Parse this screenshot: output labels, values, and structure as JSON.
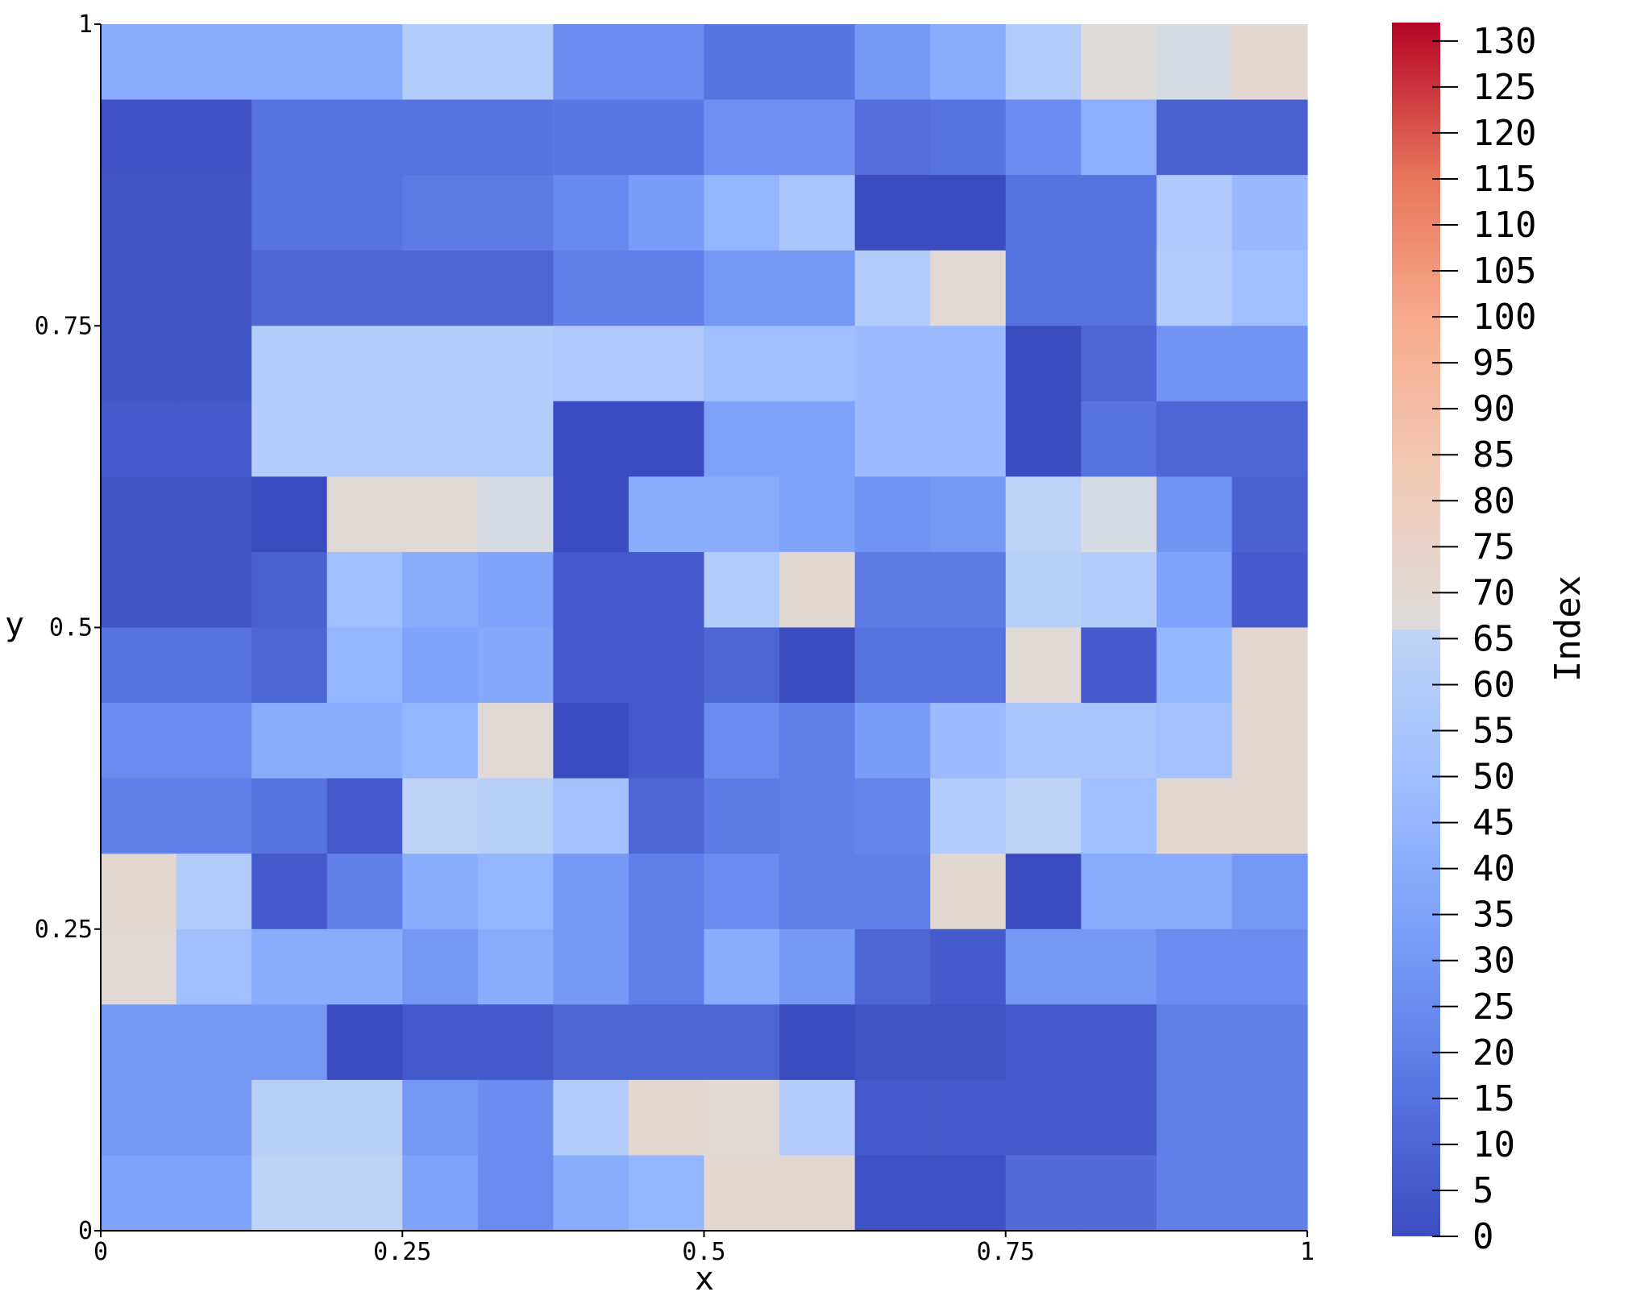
{
  "chart_data": {
    "type": "heatmap",
    "title": "",
    "xlabel": "x",
    "ylabel": "y",
    "xlim": [
      0,
      1
    ],
    "ylim": [
      0,
      1
    ],
    "x_ticks": [
      "0",
      "0.25",
      "0.5",
      "0.75",
      "1"
    ],
    "y_ticks": [
      "0",
      "0.25",
      "0.5",
      "0.75",
      "1"
    ],
    "colorbar": {
      "title": "Index",
      "range": [
        0,
        132
      ],
      "colormap": "coolwarm",
      "ticks": [
        "0",
        "5",
        "10",
        "15",
        "20",
        "25",
        "30",
        "35",
        "40",
        "45",
        "50",
        "55",
        "60",
        "65",
        "70",
        "75",
        "80",
        "85",
        "90",
        "95",
        "100",
        "105",
        "110",
        "115",
        "120",
        "125",
        "130"
      ]
    },
    "grid": false,
    "rows": 16,
    "cols": 16,
    "values": [
      [
        40,
        40,
        40,
        40,
        60,
        60,
        25,
        25,
        15,
        15,
        30,
        40,
        60,
        68,
        67,
        72
      ],
      [
        2,
        2,
        15,
        15,
        15,
        15,
        17,
        17,
        27,
        27,
        13,
        15,
        25,
        42,
        8,
        8
      ],
      [
        3,
        3,
        15,
        15,
        18,
        18,
        24,
        32,
        45,
        55,
        0,
        0,
        15,
        15,
        58,
        47
      ],
      [
        4,
        4,
        10,
        10,
        10,
        10,
        20,
        20,
        30,
        30,
        60,
        70,
        15,
        15,
        60,
        50
      ],
      [
        4,
        4,
        60,
        60,
        60,
        60,
        58,
        58,
        50,
        50,
        48,
        48,
        0,
        10,
        28,
        28
      ],
      [
        5,
        5,
        60,
        60,
        60,
        60,
        0,
        0,
        35,
        35,
        48,
        48,
        0,
        15,
        10,
        10
      ],
      [
        3,
        3,
        0,
        70,
        70,
        67,
        0,
        40,
        40,
        35,
        28,
        30,
        65,
        67,
        28,
        8
      ],
      [
        3,
        3,
        8,
        50,
        40,
        35,
        5,
        5,
        60,
        72,
        18,
        18,
        62,
        60,
        35,
        5
      ],
      [
        15,
        15,
        10,
        45,
        35,
        38,
        5,
        5,
        10,
        0,
        15,
        15,
        70,
        5,
        45,
        72
      ],
      [
        25,
        25,
        40,
        40,
        45,
        70,
        0,
        5,
        25,
        20,
        32,
        48,
        55,
        55,
        52,
        72
      ],
      [
        20,
        20,
        15,
        5,
        65,
        62,
        52,
        10,
        18,
        20,
        22,
        60,
        65,
        50,
        72,
        72
      ],
      [
        72,
        60,
        5,
        20,
        40,
        45,
        30,
        20,
        25,
        20,
        20,
        72,
        0,
        40,
        40,
        30
      ],
      [
        70,
        50,
        40,
        40,
        30,
        40,
        30,
        20,
        40,
        30,
        10,
        5,
        30,
        30,
        25,
        25
      ],
      [
        30,
        30,
        30,
        0,
        5,
        5,
        10,
        10,
        10,
        0,
        3,
        3,
        5,
        5,
        20,
        20
      ],
      [
        30,
        30,
        62,
        62,
        30,
        25,
        60,
        72,
        70,
        60,
        5,
        5,
        5,
        5,
        20,
        20
      ],
      [
        35,
        35,
        65,
        65,
        35,
        25,
        40,
        45,
        72,
        72,
        2,
        2,
        12,
        12,
        20,
        20
      ]
    ]
  }
}
